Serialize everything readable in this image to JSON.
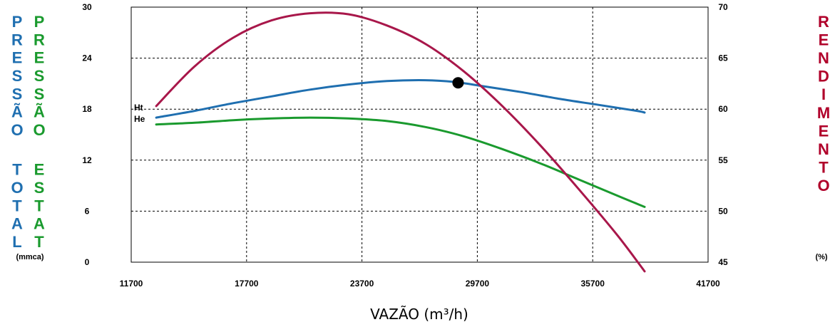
{
  "chart_data": {
    "type": "line",
    "title": "",
    "xlabel": "VAZÃO (m³/h)",
    "x_ticks": [
      "11700",
      "17700",
      "23700",
      "29700",
      "35700",
      "41700"
    ],
    "xlim": [
      11700,
      41700
    ],
    "y_left": {
      "label_total": "PRESSÃO TOTAL",
      "label_static": "PRESSÃO ESTAT",
      "unit": "(mmca)",
      "ticks": [
        "30",
        "24",
        "18",
        "12",
        "6",
        "0"
      ],
      "ylim": [
        0,
        30
      ],
      "label_total_color": "#1f6fb0",
      "label_static_color": "#1a9a2e"
    },
    "y_right": {
      "label": "RENDIMENTO",
      "unit": "(%)",
      "ticks": [
        "70",
        "65",
        "60",
        "55",
        "50",
        "45"
      ],
      "ylim": [
        45,
        70
      ],
      "label_color": "#b0002a"
    },
    "grid": true,
    "series": [
      {
        "name": "Ht",
        "axis": "left",
        "color": "#1f6fb0",
        "x": [
          13000,
          15000,
          17000,
          19000,
          21000,
          23000,
          25000,
          27000,
          28500,
          30000,
          32000,
          34000,
          36000,
          38000,
          38400
        ],
        "y": [
          17.0,
          17.8,
          18.7,
          19.5,
          20.3,
          20.9,
          21.3,
          21.4,
          21.2,
          20.7,
          20.0,
          19.2,
          18.5,
          17.8,
          17.6
        ]
      },
      {
        "name": "He",
        "axis": "left",
        "color": "#1a9a2e",
        "x": [
          13000,
          15000,
          17000,
          19000,
          21000,
          23000,
          25000,
          27000,
          29000,
          31000,
          33000,
          35000,
          37000,
          38400
        ],
        "y": [
          16.2,
          16.4,
          16.7,
          16.9,
          17.0,
          16.9,
          16.6,
          15.9,
          14.8,
          13.3,
          11.6,
          9.7,
          7.8,
          6.5
        ]
      },
      {
        "name": "Rendimento",
        "axis": "right",
        "color": "#a8174a",
        "x": [
          13000,
          15000,
          17000,
          19000,
          21000,
          23000,
          25000,
          27000,
          29000,
          31000,
          33000,
          35000,
          37000,
          38400
        ],
        "y": [
          60.3,
          64.2,
          67.0,
          68.7,
          69.4,
          69.3,
          68.2,
          66.4,
          63.7,
          60.3,
          56.4,
          52.1,
          47.6,
          44.1
        ]
      }
    ],
    "curve_labels": [
      "Ht",
      "He"
    ],
    "operating_point": {
      "x": 28700,
      "y": 21.1,
      "axis": "left",
      "color": "#000000"
    }
  }
}
